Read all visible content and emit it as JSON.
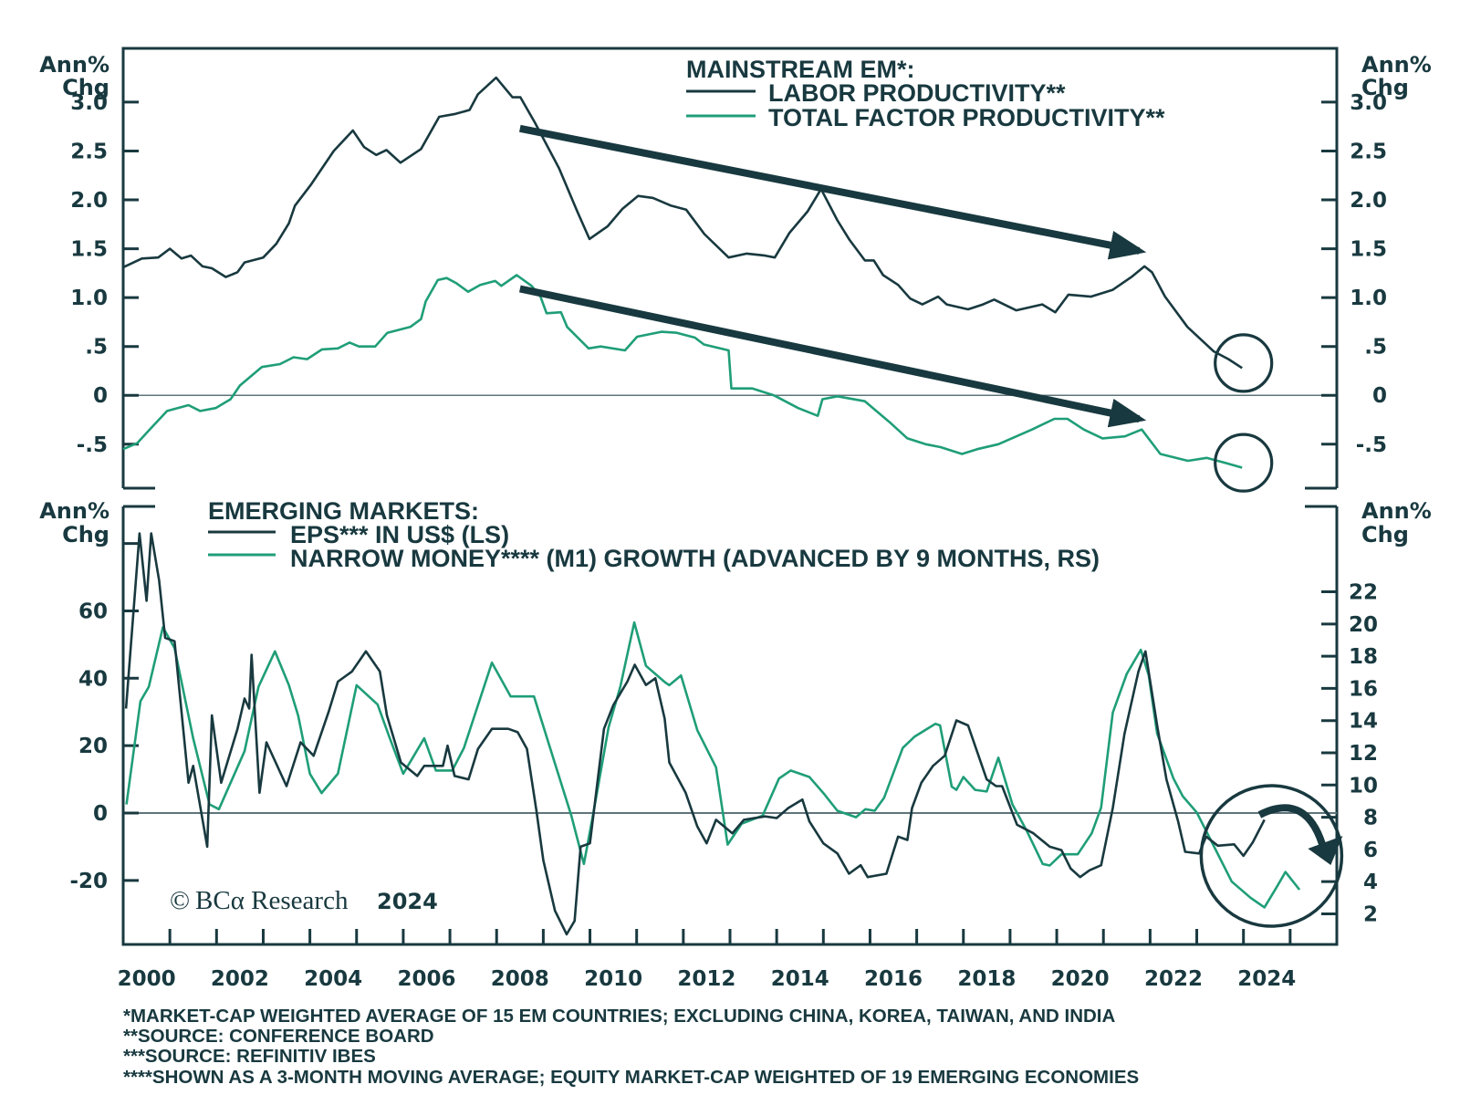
{
  "colors": {
    "dark": "#18393f",
    "green": "#1f9e78",
    "zero_line": "#5f7479",
    "background": "#ffffff"
  },
  "chart_data": [
    {
      "type": "line",
      "panel": "top",
      "title": "MAINSTREAM EM*:",
      "ylabel_left": [
        "Ann%",
        "Chg"
      ],
      "ylabel_right": [
        "Ann%",
        "Chg"
      ],
      "xlim": [
        2000,
        2026
      ],
      "ylim": [
        -0.95,
        3.55
      ],
      "yticks": [
        3.0,
        2.5,
        2.0,
        1.5,
        1.0,
        0.5,
        0,
        -0.5
      ],
      "ytick_labels": [
        "3.0",
        "2.5",
        "2.0",
        "1.5",
        "1.0",
        ".5",
        "0",
        "-.5"
      ],
      "zero_line": true,
      "legend_position": "top-center",
      "series": [
        {
          "name": "LABOR PRODUCTIVITY**",
          "color_key": "dark",
          "x": [
            2000.0,
            2000.4,
            2000.75,
            2001.0,
            2001.25,
            2001.45,
            2001.7,
            2001.9,
            2002.2,
            2002.45,
            2002.6,
            2003.0,
            2003.28,
            2003.55,
            2003.68,
            2004.03,
            2004.51,
            2004.92,
            2005.16,
            2005.42,
            2005.64,
            2005.94,
            2006.38,
            2006.77,
            2007.12,
            2007.42,
            2007.6,
            2007.99,
            2008.34,
            2008.51,
            2008.82,
            2009.34,
            2009.73,
            2009.99,
            2010.38,
            2010.7,
            2011.03,
            2011.35,
            2011.74,
            2012.06,
            2012.45,
            2012.97,
            2013.36,
            2013.75,
            2013.96,
            2014.27,
            2014.66,
            2014.95,
            2015.3,
            2015.56,
            2015.89,
            2016.08,
            2016.28,
            2016.6,
            2016.86,
            2017.12,
            2017.46,
            2017.64,
            2018.1,
            2018.42,
            2018.66,
            2019.13,
            2019.69,
            2019.97,
            2020.25,
            2020.73,
            2021.2,
            2021.6,
            2021.88,
            2022.04,
            2022.32,
            2022.8,
            2023.36,
            2023.68,
            2023.97
          ],
          "y": [
            1.31,
            1.4,
            1.41,
            1.5,
            1.4,
            1.43,
            1.32,
            1.3,
            1.21,
            1.26,
            1.36,
            1.41,
            1.55,
            1.76,
            1.94,
            2.16,
            2.5,
            2.71,
            2.54,
            2.46,
            2.51,
            2.38,
            2.52,
            2.85,
            2.88,
            2.92,
            3.08,
            3.25,
            3.05,
            3.05,
            2.79,
            2.32,
            1.88,
            1.6,
            1.73,
            1.91,
            2.04,
            2.02,
            1.94,
            1.9,
            1.65,
            1.41,
            1.45,
            1.43,
            1.41,
            1.66,
            1.88,
            2.11,
            1.79,
            1.59,
            1.38,
            1.38,
            1.23,
            1.13,
            0.99,
            0.93,
            1.01,
            0.93,
            0.88,
            0.93,
            0.98,
            0.87,
            0.93,
            0.85,
            1.03,
            1.01,
            1.08,
            1.21,
            1.32,
            1.26,
            1.01,
            0.7,
            0.45,
            0.37,
            0.28
          ]
        },
        {
          "name": "TOTAL FACTOR PRODUCTIVITY**",
          "color_key": "green",
          "x": [
            2000.0,
            2000.3,
            2000.55,
            2000.94,
            2001.4,
            2001.65,
            2001.98,
            2002.3,
            2002.5,
            2002.97,
            2003.36,
            2003.65,
            2003.94,
            2004.26,
            2004.6,
            2004.85,
            2005.05,
            2005.4,
            2005.66,
            2006.15,
            2006.38,
            2006.48,
            2006.74,
            2006.93,
            2007.13,
            2007.39,
            2007.65,
            2007.97,
            2008.1,
            2008.43,
            2008.75,
            2008.94,
            2009.07,
            2009.38,
            2009.51,
            2009.97,
            2010.23,
            2010.75,
            2011.01,
            2011.53,
            2011.86,
            2012.25,
            2012.44,
            2012.97,
            2013.03,
            2013.48,
            2013.94,
            2014.46,
            2014.88,
            2014.98,
            2015.3,
            2015.89,
            2016.41,
            2016.8,
            2017.19,
            2017.51,
            2017.97,
            2018.3,
            2018.75,
            2019.47,
            2019.95,
            2020.23,
            2020.58,
            2020.98,
            2021.46,
            2021.82,
            2022.22,
            2022.81,
            2023.21,
            2023.61,
            2023.97
          ],
          "y": [
            -0.55,
            -0.49,
            -0.36,
            -0.16,
            -0.1,
            -0.16,
            -0.13,
            -0.04,
            0.1,
            0.29,
            0.32,
            0.39,
            0.37,
            0.47,
            0.48,
            0.54,
            0.5,
            0.5,
            0.64,
            0.7,
            0.78,
            0.96,
            1.18,
            1.2,
            1.15,
            1.06,
            1.13,
            1.17,
            1.12,
            1.23,
            1.12,
            1.01,
            0.84,
            0.85,
            0.7,
            0.48,
            0.5,
            0.46,
            0.6,
            0.65,
            0.64,
            0.59,
            0.52,
            0.46,
            0.07,
            0.07,
            0.0,
            -0.13,
            -0.21,
            -0.04,
            -0.01,
            -0.06,
            -0.27,
            -0.44,
            -0.5,
            -0.53,
            -0.6,
            -0.55,
            -0.5,
            -0.35,
            -0.24,
            -0.24,
            -0.35,
            -0.44,
            -0.42,
            -0.35,
            -0.6,
            -0.67,
            -0.64,
            -0.69,
            -0.74
          ]
        }
      ],
      "annotations": [
        {
          "kind": "trend-arrow",
          "label": "labor-productivity-downtrend",
          "from": [
            2008.5,
            2.73
          ],
          "to": [
            2022.0,
            1.45
          ]
        },
        {
          "kind": "trend-arrow",
          "label": "tfp-downtrend",
          "from": [
            2008.5,
            1.09
          ],
          "to": [
            2022.0,
            -0.27
          ]
        },
        {
          "kind": "circle",
          "label": "labor-latest-highlight",
          "center": [
            2024.0,
            0.33
          ]
        },
        {
          "kind": "circle",
          "label": "tfp-latest-highlight",
          "center": [
            2024.0,
            -0.69
          ]
        }
      ]
    },
    {
      "type": "line",
      "panel": "bottom",
      "title": "EMERGING MARKETS:",
      "ylabel_left": [
        "Ann%",
        "Chg"
      ],
      "ylabel_right": [
        "Ann%",
        "Chg"
      ],
      "xlabel": "",
      "xlim": [
        2000,
        2026
      ],
      "x_tick_labels": [
        "2000",
        "2002",
        "2004",
        "2006",
        "2008",
        "2010",
        "2012",
        "2014",
        "2016",
        "2018",
        "2020",
        "2022",
        "2024"
      ],
      "left_axis": {
        "ylim": [
          -39,
          91
        ],
        "ticks": [
          80,
          60,
          40,
          20,
          0,
          -20
        ],
        "tick_labels": [
          "",
          "60",
          "40",
          "20",
          "0",
          "-20"
        ]
      },
      "right_axis": {
        "ylim": [
          0.1,
          27.3
        ],
        "ticks": [
          22,
          20,
          18,
          16,
          14,
          12,
          10,
          8,
          6,
          4,
          2
        ],
        "tick_labels": [
          "22",
          "20",
          "18",
          "16",
          "14",
          "12",
          "10",
          "8",
          "6",
          "4",
          "2"
        ]
      },
      "zero_line": true,
      "legend_position": "top-left",
      "series": [
        {
          "name": "EPS*** IN US$ (LS)",
          "axis": "left",
          "color_key": "dark",
          "x": [
            2000.06,
            2000.35,
            2000.5,
            2000.6,
            2000.77,
            2000.9,
            2001.1,
            2001.4,
            2001.5,
            2001.8,
            2001.9,
            2002.1,
            2002.45,
            2002.6,
            2002.7,
            2002.75,
            2002.92,
            2003.07,
            2003.5,
            2003.8,
            2004.08,
            2004.4,
            2004.6,
            2004.9,
            2005.2,
            2005.5,
            2005.65,
            2005.95,
            2006.3,
            2006.45,
            2006.85,
            2006.95,
            2007.1,
            2007.4,
            2007.6,
            2007.9,
            2008.25,
            2008.45,
            2008.65,
            2008.85,
            2009.0,
            2009.25,
            2009.5,
            2009.67,
            2009.8,
            2010.0,
            2010.3,
            2010.5,
            2010.8,
            2010.96,
            2011.2,
            2011.4,
            2011.6,
            2011.7,
            2012.05,
            2012.3,
            2012.5,
            2012.7,
            2013.05,
            2013.3,
            2013.75,
            2014.0,
            2014.25,
            2014.55,
            2014.7,
            2015.0,
            2015.3,
            2015.55,
            2015.8,
            2015.95,
            2016.35,
            2016.6,
            2016.8,
            2016.9,
            2017.1,
            2017.35,
            2017.6,
            2017.85,
            2018.1,
            2018.5,
            2018.7,
            2018.83,
            2019.15,
            2019.5,
            2019.85,
            2020.1,
            2020.3,
            2020.5,
            2020.7,
            2020.95,
            2021.2,
            2021.45,
            2021.75,
            2021.9,
            2022.15,
            2022.35,
            2022.6,
            2022.75,
            2023.05,
            2023.2,
            2023.45,
            2023.8,
            2024.0,
            2024.2,
            2024.45
          ],
          "y": [
            31,
            83,
            63,
            83,
            69,
            52,
            51,
            9,
            14,
            -10,
            29,
            9,
            25,
            34,
            31,
            47,
            6,
            21,
            8,
            21,
            17,
            30,
            39,
            42,
            48,
            42,
            29,
            15,
            11,
            14,
            14,
            20,
            11,
            10,
            19,
            25,
            25,
            24,
            19,
            1,
            -14,
            -29,
            -36,
            -32,
            -10,
            -9,
            25,
            32,
            39,
            44,
            38,
            40,
            28,
            15,
            6,
            -4,
            -9,
            -2,
            -6,
            -2,
            -1,
            -1.5,
            1.5,
            4,
            -2.5,
            -9,
            -12,
            -18,
            -15.5,
            -19,
            -18,
            -7,
            -8,
            1.5,
            9,
            14,
            17,
            27.5,
            26,
            10,
            8,
            8,
            -3.5,
            -6,
            -10,
            -11,
            -16.5,
            -19,
            -17,
            -15.5,
            1.5,
            23.5,
            42,
            48,
            26,
            10,
            -2.5,
            -11.5,
            -12,
            -7,
            -9.7,
            -9.3,
            -12.7,
            -8.7,
            -2
          ]
        },
        {
          "name": "NARROW MONEY**** (M1) GROWTH (ADVANCED BY 9 MONTHS, RS)",
          "axis": "right",
          "color_key": "green",
          "x": [
            2000.07,
            2000.37,
            2000.55,
            2000.85,
            2001.1,
            2001.5,
            2001.85,
            2002.05,
            2002.6,
            2002.9,
            2003.25,
            2003.55,
            2003.75,
            2004.0,
            2004.25,
            2004.6,
            2005.0,
            2005.45,
            2005.7,
            2006.0,
            2006.45,
            2006.7,
            2007.05,
            2007.3,
            2007.9,
            2008.3,
            2008.8,
            2009.2,
            2009.6,
            2009.87,
            2010.05,
            2010.4,
            2010.65,
            2010.95,
            2011.2,
            2011.6,
            2011.7,
            2011.95,
            2012.3,
            2012.7,
            2012.95,
            2013.25,
            2013.7,
            2014.05,
            2014.3,
            2014.7,
            2015.0,
            2015.3,
            2015.7,
            2015.9,
            2016.1,
            2016.3,
            2016.7,
            2016.95,
            2017.4,
            2017.5,
            2017.75,
            2017.85,
            2018.0,
            2018.25,
            2018.5,
            2018.75,
            2019.05,
            2019.35,
            2019.7,
            2019.85,
            2020.1,
            2020.45,
            2020.75,
            2020.95,
            2021.2,
            2021.5,
            2021.8,
            2021.97,
            2022.15,
            2022.5,
            2022.7,
            2023.0,
            2023.35,
            2023.75,
            2024.15,
            2024.45,
            2024.7,
            2024.9,
            2025.2
          ],
          "y": [
            8.8,
            15.2,
            16.1,
            19.8,
            18.5,
            12.9,
            8.8,
            8.5,
            12.1,
            16.1,
            18.3,
            16.2,
            14.3,
            10.7,
            9.5,
            10.7,
            16.2,
            15.0,
            13.0,
            10.7,
            12.9,
            10.9,
            10.9,
            12.3,
            17.6,
            15.5,
            15.5,
            11.8,
            8.1,
            5.1,
            7.9,
            13.6,
            16.1,
            20.1,
            17.4,
            16.4,
            16.2,
            16.8,
            13.4,
            11.1,
            6.3,
            7.6,
            8.1,
            10.4,
            10.9,
            10.5,
            9.5,
            8.4,
            8.0,
            8.5,
            8.4,
            9.2,
            12.3,
            13.0,
            13.8,
            13.7,
            9.9,
            9.7,
            10.5,
            9.7,
            9.6,
            11.7,
            8.8,
            7.2,
            5.1,
            5.0,
            5.7,
            5.7,
            7.0,
            8.6,
            14.5,
            16.9,
            18.4,
            16.8,
            13.2,
            10.4,
            9.3,
            8.3,
            6.3,
            4.0,
            3.0,
            2.4,
            3.6,
            4.6,
            3.5
          ]
        }
      ],
      "annotations": [
        {
          "kind": "circle",
          "label": "recent-divergence-highlight",
          "center": [
            2024.6,
            -11.7
          ]
        },
        {
          "kind": "curved-arrow",
          "label": "expected-eps-downturn"
        }
      ],
      "watermark": {
        "symbol": "©",
        "brand": "BCα Research",
        "year": "2024"
      }
    }
  ],
  "legend_top": {
    "title": "MAINSTREAM EM*:",
    "items": [
      "LABOR PRODUCTIVITY**",
      "TOTAL FACTOR PRODUCTIVITY**"
    ]
  },
  "legend_bottom": {
    "title": "EMERGING MARKETS:",
    "items": [
      "EPS*** IN US$ (LS)",
      "NARROW MONEY**** (M1) GROWTH (ADVANCED BY 9 MONTHS, RS)"
    ]
  },
  "axis_titles": {
    "line1": "Ann%",
    "line2": "Chg"
  },
  "footnotes": [
    "*MARKET-CAP WEIGHTED AVERAGE OF 15 EM COUNTRIES; EXCLUDING CHINA, KOREA, TAIWAN, AND INDIA",
    "**SOURCE: CONFERENCE BOARD",
    "***SOURCE: REFINITIV IBES",
    "****SHOWN AS A 3-MONTH MOVING AVERAGE; EQUITY MARKET-CAP WEIGHTED OF 19 EMERGING ECONOMIES"
  ],
  "copyright": {
    "symbol": "©",
    "brand": "BCα Research",
    "year": "2024"
  }
}
